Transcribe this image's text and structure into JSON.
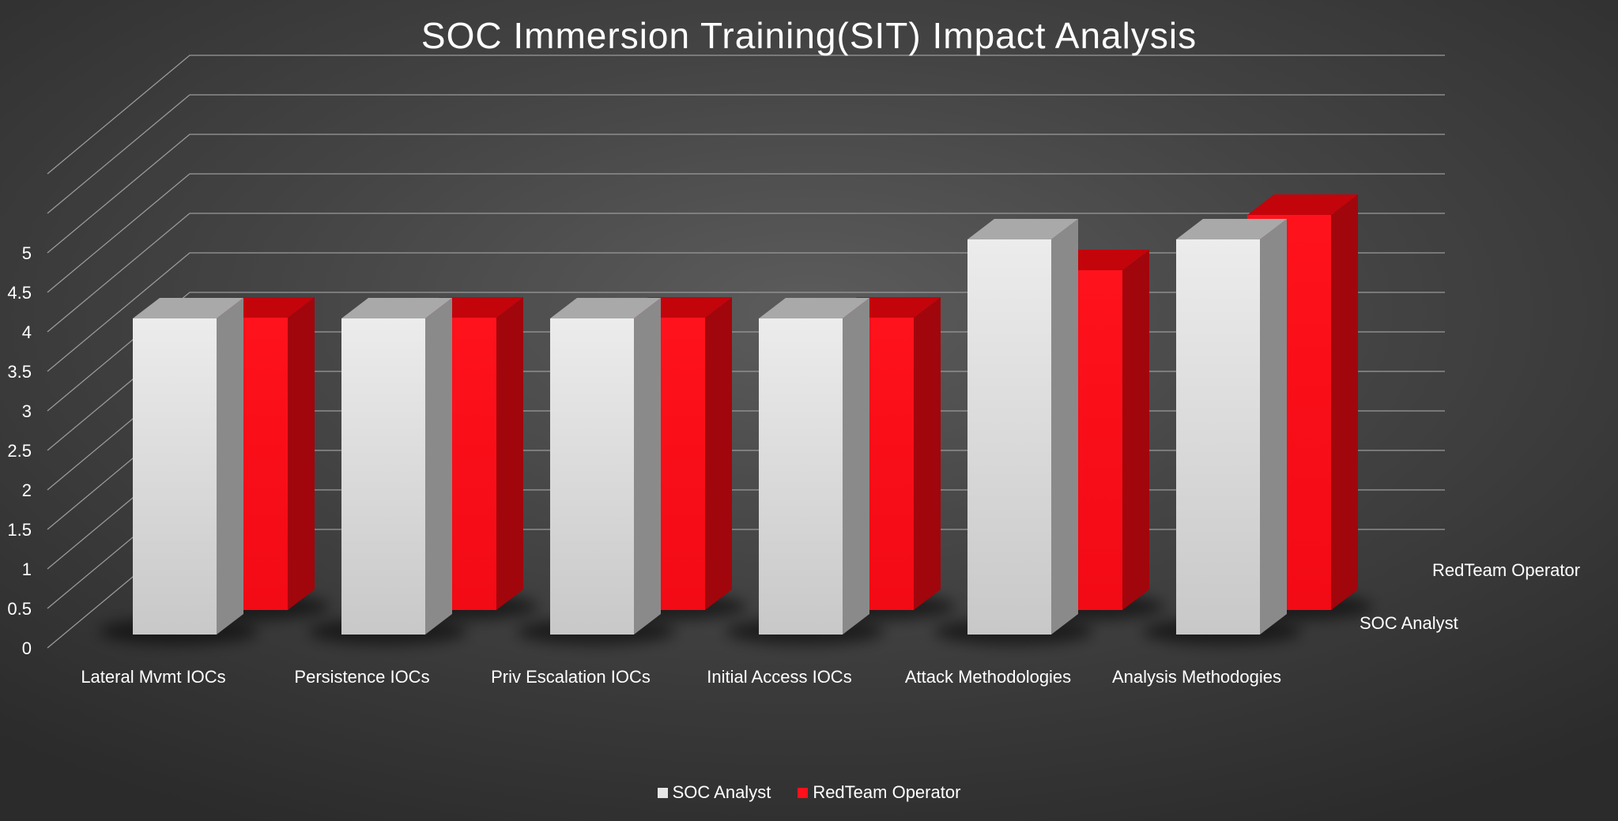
{
  "chart_data": {
    "type": "bar",
    "title": "SOC Immersion Training(SIT) Impact Analysis",
    "categories": [
      "Lateral Mvmt IOCs",
      "Persistence IOCs",
      "Priv Escalation IOCs",
      "Initial Access IOCs",
      "Attack Methodologies",
      "Analysis Methodogies"
    ],
    "series": [
      {
        "name": "SOC Analyst",
        "values": [
          4,
          4,
          4,
          4,
          5,
          5
        ],
        "color": "#e6e6e6"
      },
      {
        "name": "RedTeam Operator",
        "values": [
          3.7,
          3.7,
          3.7,
          3.7,
          4.3,
          5
        ],
        "color": "#ff101a"
      }
    ],
    "ylim": [
      0,
      5
    ],
    "yticks": [
      "0",
      "0.5",
      "1",
      "1.5",
      "2",
      "2.5",
      "3",
      "3.5",
      "4",
      "4.5",
      "5"
    ],
    "grid": true,
    "depth_axis_labels": [
      "SOC Analyst",
      "RedTeam Operator"
    ],
    "legend": "bottom"
  }
}
